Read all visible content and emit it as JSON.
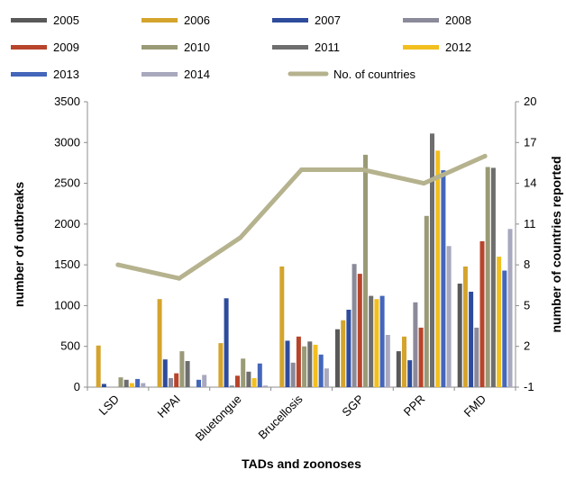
{
  "chart_data": {
    "type": "bar",
    "xlabel": "TADs and zoonoses",
    "ylabel": "number of outbreaks",
    "y2label": "number of countries reported",
    "ylim": [
      0,
      3500
    ],
    "y2lim": [
      -1,
      20
    ],
    "yticks": [
      "0",
      "500",
      "1000",
      "1500",
      "2000",
      "2500",
      "3000",
      "3500"
    ],
    "y2ticks": [
      "-1",
      "2",
      "5",
      "8",
      "11",
      "14",
      "17",
      "20"
    ],
    "grid": false,
    "legend_position": "top",
    "categories": [
      "LSD",
      "HPAI",
      "Bluetongue",
      "Brucellosis",
      "SGP",
      "PPR",
      "FMD"
    ],
    "series": [
      {
        "name": "2005",
        "color": "#595959",
        "values": [
          0,
          0,
          0,
          0,
          710,
          440,
          1270
        ]
      },
      {
        "name": "2006",
        "color": "#D4A42C",
        "values": [
          510,
          1080,
          540,
          1480,
          820,
          620,
          1480
        ]
      },
      {
        "name": "2007",
        "color": "#2E4C9C",
        "values": [
          40,
          340,
          1090,
          570,
          950,
          330,
          1170
        ]
      },
      {
        "name": "2008",
        "color": "#8A8A9A",
        "values": [
          0,
          110,
          20,
          300,
          1510,
          1040,
          730
        ]
      },
      {
        "name": "2009",
        "color": "#B8442B",
        "values": [
          0,
          170,
          140,
          620,
          1390,
          730,
          1790
        ]
      },
      {
        "name": "2010",
        "color": "#9A9A76",
        "values": [
          120,
          440,
          350,
          500,
          2850,
          2100,
          2700
        ]
      },
      {
        "name": "2011",
        "color": "#6E6E6E",
        "values": [
          90,
          320,
          190,
          560,
          1120,
          3110,
          2690
        ]
      },
      {
        "name": "2012",
        "color": "#F2BF1E",
        "values": [
          50,
          0,
          110,
          520,
          1080,
          2900,
          1600
        ]
      },
      {
        "name": "2013",
        "color": "#4466BB",
        "values": [
          100,
          90,
          290,
          400,
          1120,
          2660,
          1430
        ]
      },
      {
        "name": "2014",
        "color": "#A8A8BE",
        "values": [
          50,
          150,
          20,
          230,
          640,
          1730,
          1940
        ]
      },
      {
        "name": "No. of countries",
        "type": "line",
        "axis": "right",
        "color": "#B5B28E",
        "values": [
          8,
          7,
          10,
          15,
          15,
          14,
          16
        ]
      }
    ]
  }
}
